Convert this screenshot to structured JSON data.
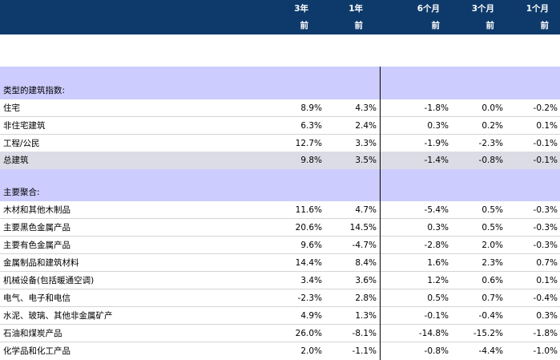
{
  "header": {
    "row1": [
      "3年",
      "1年",
      "6个月",
      "3个月",
      "1个月"
    ],
    "row2": [
      "前",
      "前",
      "前",
      "前",
      "前"
    ]
  },
  "sections": [
    {
      "title": "类型的建筑指数:",
      "rows": [
        {
          "label": "住宅",
          "values": [
            "8.9%",
            "4.3%",
            "-1.8%",
            "0.0%",
            "-0.2%"
          ]
        },
        {
          "label": "非住宅建筑",
          "values": [
            "6.3%",
            "2.4%",
            "0.3%",
            "0.2%",
            "0.1%"
          ]
        },
        {
          "label": "工程/公民",
          "values": [
            "12.7%",
            "3.3%",
            "-1.9%",
            "-2.3%",
            "-0.1%"
          ]
        }
      ],
      "total": {
        "label": "总建筑",
        "values": [
          "9.8%",
          "3.5%",
          "-1.4%",
          "-0.8%",
          "-0.1%"
        ]
      }
    },
    {
      "title": "主要聚合:",
      "rows": [
        {
          "label": "木材和其他木制品",
          "values": [
            "11.6%",
            "4.7%",
            "-5.4%",
            "0.5%",
            "-0.3%"
          ]
        },
        {
          "label": "主要黑色金属产品",
          "values": [
            "20.6%",
            "14.5%",
            "0.3%",
            "0.5%",
            "-0.3%"
          ]
        },
        {
          "label": "主要有色金属产品",
          "values": [
            "9.6%",
            "-4.7%",
            "-2.8%",
            "2.0%",
            "-0.3%"
          ]
        },
        {
          "label": "金属制品和建筑材料",
          "values": [
            "14.4%",
            "8.4%",
            "1.6%",
            "2.3%",
            "0.7%"
          ]
        },
        {
          "label": "机械设备(包括暖通空调)",
          "values": [
            "3.4%",
            "3.6%",
            "1.2%",
            "0.6%",
            "0.1%"
          ]
        },
        {
          "label": "电气、电子和电信",
          "values": [
            "-2.3%",
            "2.8%",
            "0.5%",
            "0.7%",
            "-0.4%"
          ]
        },
        {
          "label": "水泥、玻璃、其他非金属矿产",
          "values": [
            "4.9%",
            "1.3%",
            "-0.1%",
            "-0.4%",
            "0.3%"
          ]
        },
        {
          "label": "石油和煤炭产品",
          "values": [
            "26.0%",
            "-8.1%",
            "-14.8%",
            "-15.2%",
            "-1.8%"
          ]
        },
        {
          "label": "化学品和化工产品",
          "values": [
            "2.0%",
            "-1.1%",
            "-0.8%",
            "-4.4%",
            "-1.0%"
          ]
        }
      ]
    }
  ]
}
